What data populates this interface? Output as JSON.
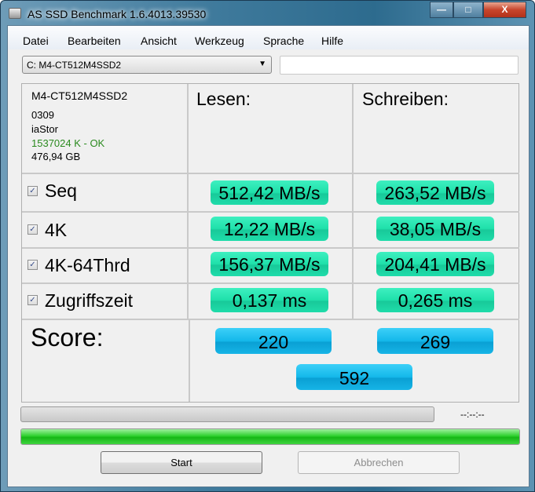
{
  "window": {
    "title": "AS SSD Benchmark 1.6.4013.39530",
    "minimize": "—",
    "maximize": "□",
    "close": "X"
  },
  "menu": [
    "Datei",
    "Bearbeiten",
    "Ansicht",
    "Werkzeug",
    "Sprache",
    "Hilfe"
  ],
  "drive_select": {
    "value": "C: M4-CT512M4SSD2"
  },
  "info": {
    "model": "M4-CT512M4SSD2",
    "firmware": "0309",
    "driver": "iaStor",
    "alignment": "1537024 K - OK",
    "size": "476,94 GB",
    "ok_color": "#2a8a1e"
  },
  "headers": {
    "read": "Lesen:",
    "write": "Schreiben:"
  },
  "tests": [
    {
      "label": "Seq",
      "checked": true,
      "read": "512,42 MB/s",
      "write": "263,52 MB/s"
    },
    {
      "label": "4K",
      "checked": true,
      "read": "12,22 MB/s",
      "write": "38,05 MB/s"
    },
    {
      "label": "4K-64Thrd",
      "checked": true,
      "read": "156,37 MB/s",
      "write": "204,41 MB/s"
    },
    {
      "label": "Zugriffszeit",
      "checked": true,
      "read": "0,137 ms",
      "write": "0,265 ms"
    }
  ],
  "score": {
    "label": "Score:",
    "read": "220",
    "write": "269",
    "total": "592"
  },
  "progress": {
    "test_progress": 0,
    "time": "--:--:--",
    "overall_progress": 100
  },
  "buttons": {
    "start": "Start",
    "cancel": "Abbrechen"
  },
  "colors": {
    "result": "#1fe0aa",
    "score": "#14b8ea",
    "progress": "#22c322"
  }
}
